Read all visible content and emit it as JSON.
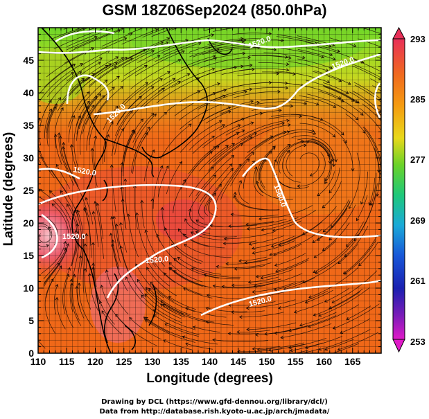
{
  "title": "GSM 18Z06Sep2024 (850.0hPa)",
  "x_axis": {
    "label": "Longitude (degrees)",
    "ticks": [
      "110",
      "115",
      "120",
      "125",
      "130",
      "135",
      "140",
      "145",
      "150",
      "155",
      "160",
      "165"
    ],
    "range": [
      110,
      170
    ]
  },
  "y_axis": {
    "label": "Latitude  (degrees)",
    "ticks": [
      "0",
      "5",
      "10",
      "15",
      "20",
      "25",
      "30",
      "35",
      "40",
      "45"
    ],
    "range": [
      0,
      50
    ]
  },
  "colorbar": {
    "labels": [
      "293",
      "285",
      "277",
      "269",
      "261",
      "253"
    ],
    "range": [
      253,
      293
    ],
    "colors": [
      "#e8305a",
      "#f06a1e",
      "#f59a10",
      "#e8d81a",
      "#6ad228",
      "#1ec87a",
      "#1aaad8",
      "#1858d8",
      "#1a20b0",
      "#7a1cb8",
      "#e01ac8"
    ]
  },
  "contours": [
    {
      "label": "1520.0"
    },
    {
      "label": "1520.0"
    },
    {
      "label": "1520.0"
    },
    {
      "label": "1520.0"
    },
    {
      "label": "1520.0"
    },
    {
      "label": "1560.0"
    },
    {
      "label": "1520.0"
    },
    {
      "label": "1520.0"
    }
  ],
  "credits": {
    "line1": "Drawing by DCL (https://www.gfd-dennou.org/library/dcl/)",
    "line2": "Data from http://database.rish.kyoto-u.ac.jp/arch/jmadata/"
  }
}
